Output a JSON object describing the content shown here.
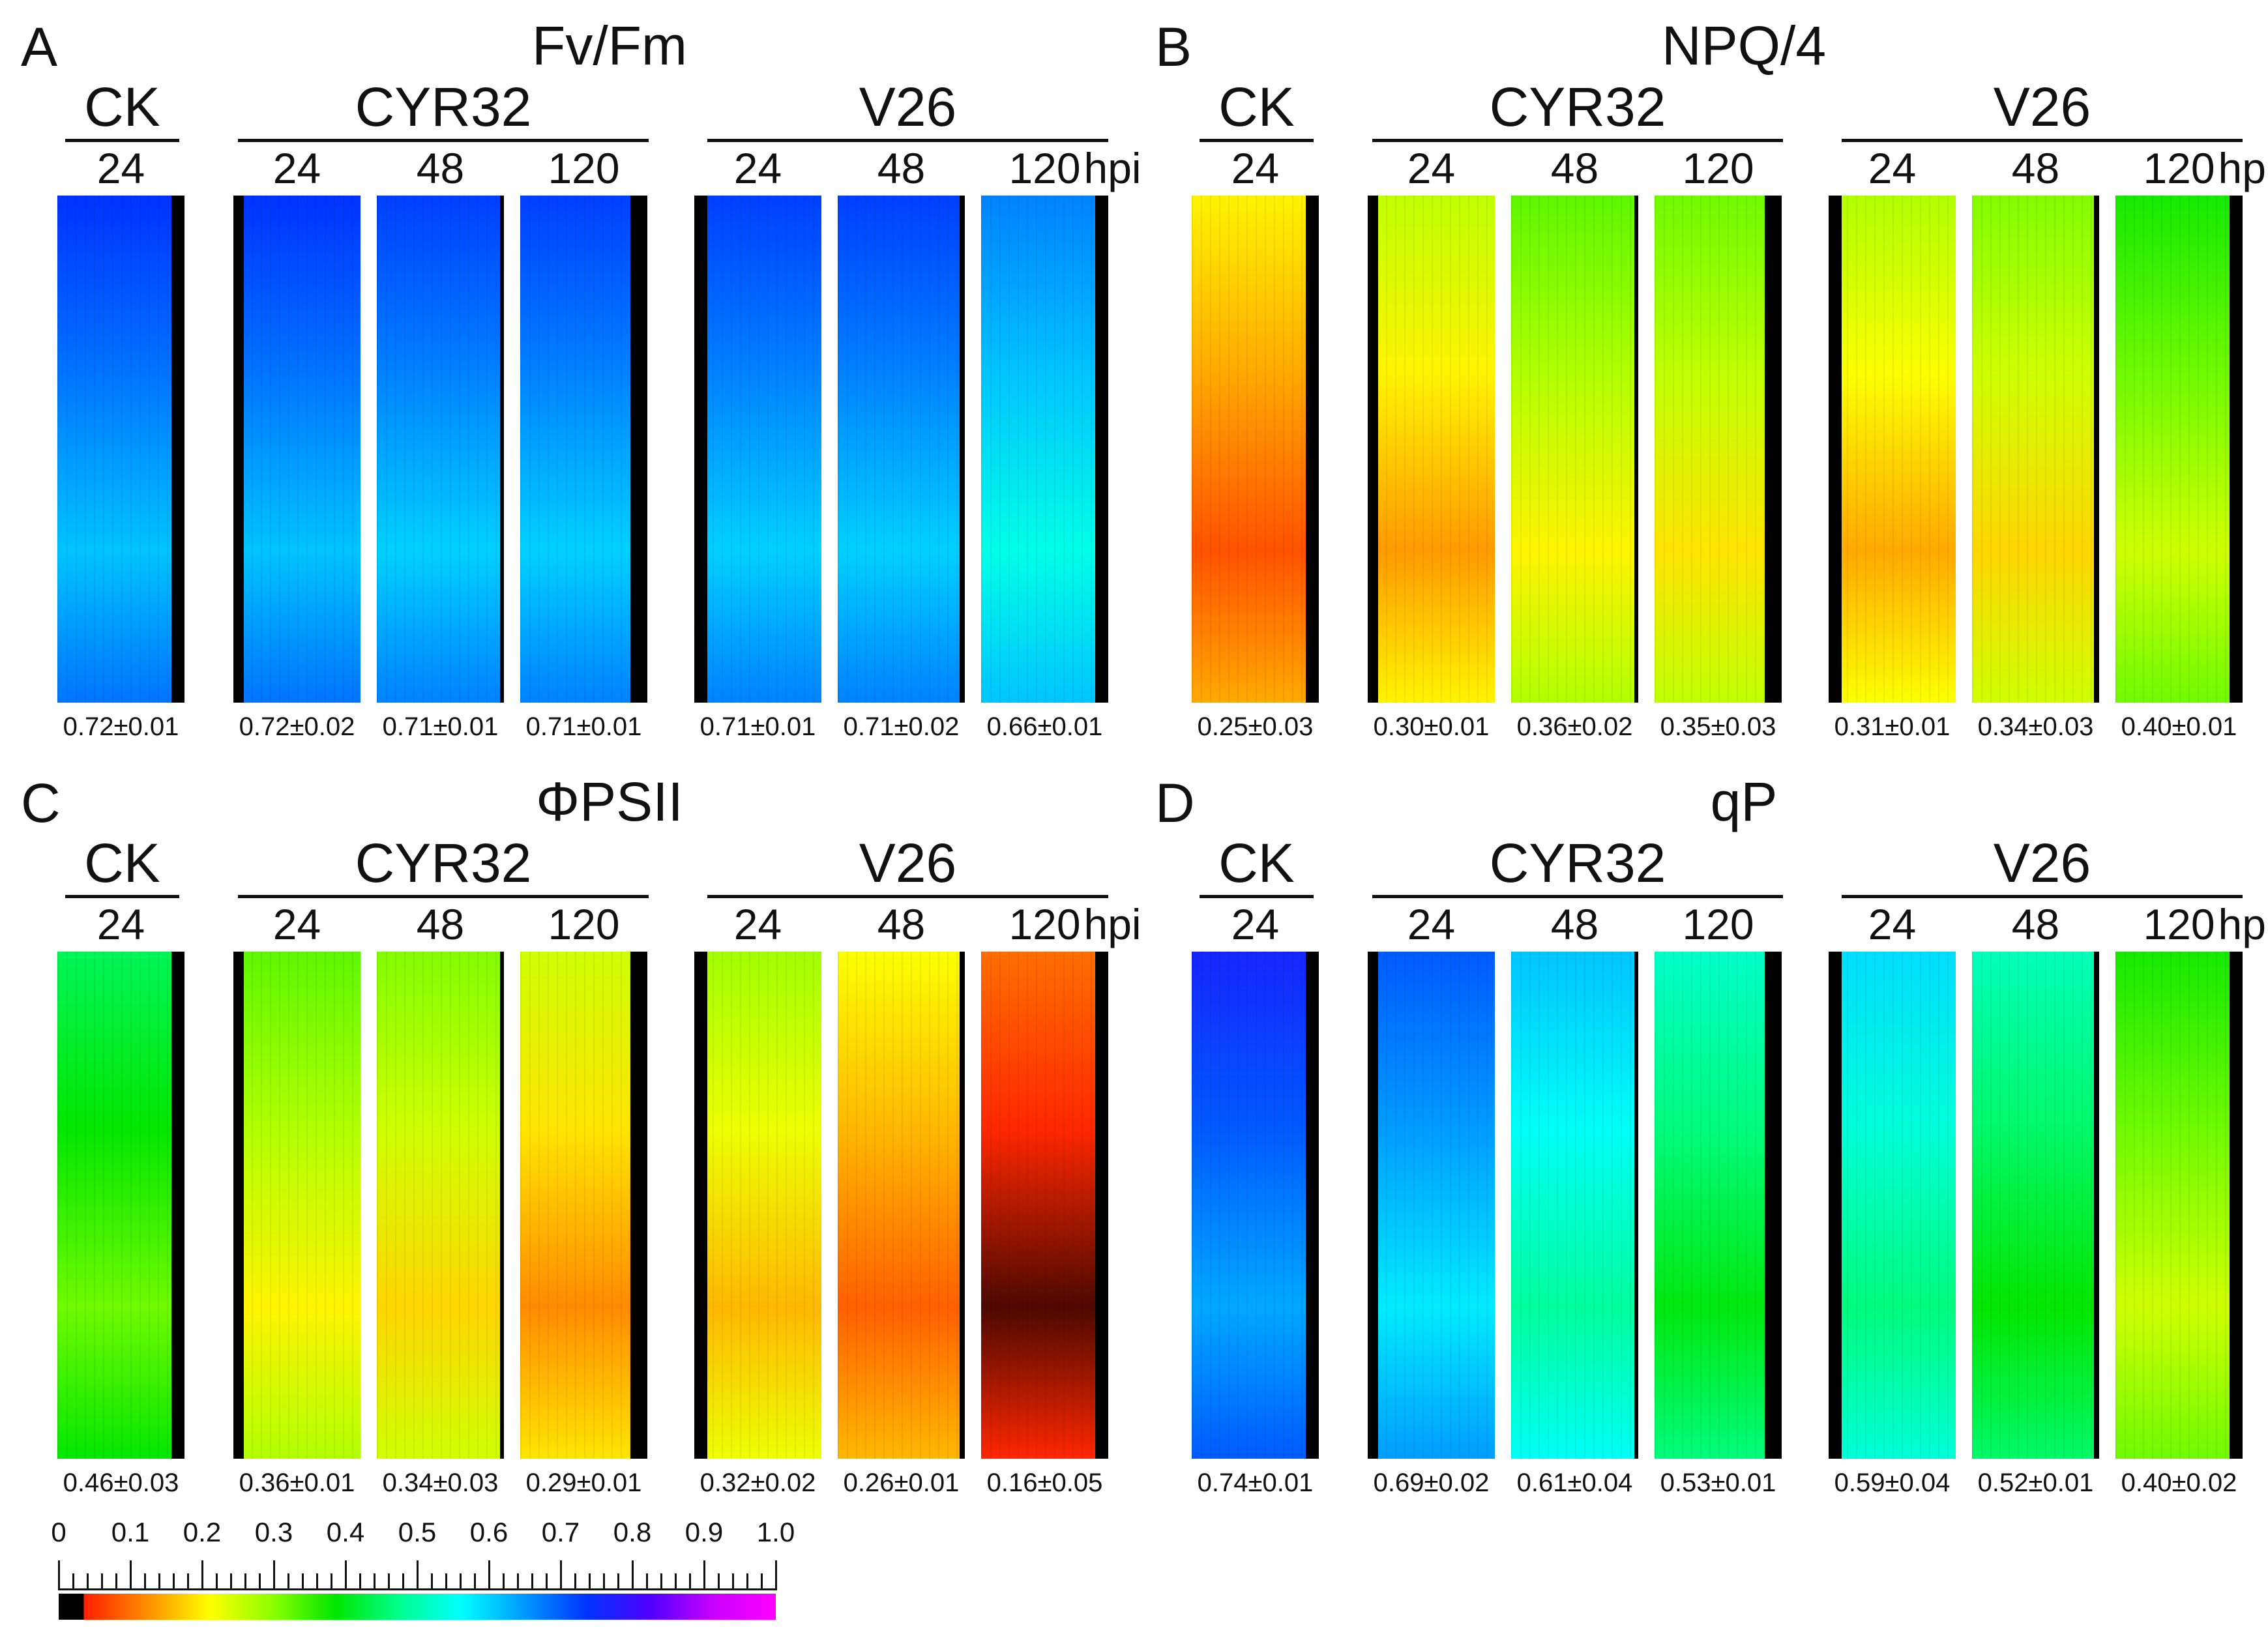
{
  "colors": {
    "scale_stops": [
      "#000000",
      "#000000",
      "#ff1e00",
      "#ff8c00",
      "#ffff00",
      "#8cff00",
      "#00e600",
      "#00ff8c",
      "#00ffff",
      "#0099ff",
      "#0033ff",
      "#5000ff",
      "#c800ff",
      "#ff00ff"
    ]
  },
  "panels": [
    {
      "letter": "A",
      "title": "Fv/Fm",
      "groups": [
        {
          "name": "CK",
          "times": [
            "24"
          ]
        },
        {
          "name": "CYR32",
          "times": [
            "24",
            "48",
            "120"
          ]
        },
        {
          "name": "V26",
          "times": [
            "24",
            "48",
            "120"
          ]
        }
      ],
      "hpi_label": "hpi",
      "leaves": [
        {
          "value": "0.72±0.01",
          "level": 0.72
        },
        {
          "value": "0.72±0.02",
          "level": 0.72
        },
        {
          "value": "0.71±0.01",
          "level": 0.71
        },
        {
          "value": "0.71±0.01",
          "level": 0.71
        },
        {
          "value": "0.71±0.01",
          "level": 0.71
        },
        {
          "value": "0.71±0.02",
          "level": 0.71
        },
        {
          "value": "0.66±0.01",
          "level": 0.66
        }
      ]
    },
    {
      "letter": "B",
      "title": "NPQ/4",
      "groups": [
        {
          "name": "CK",
          "times": [
            "24"
          ]
        },
        {
          "name": "CYR32",
          "times": [
            "24",
            "48",
            "120"
          ]
        },
        {
          "name": "V26",
          "times": [
            "24",
            "48",
            "120"
          ]
        }
      ],
      "hpi_label": "hpi",
      "leaves": [
        {
          "value": "0.25±0.03",
          "level": 0.25
        },
        {
          "value": "0.30±0.01",
          "level": 0.3
        },
        {
          "value": "0.36±0.02",
          "level": 0.36
        },
        {
          "value": "0.35±0.03",
          "level": 0.35
        },
        {
          "value": "0.31±0.01",
          "level": 0.31
        },
        {
          "value": "0.34±0.03",
          "level": 0.34
        },
        {
          "value": "0.40±0.01",
          "level": 0.4
        }
      ]
    },
    {
      "letter": "C",
      "title": "ΦPSII",
      "groups": [
        {
          "name": "CK",
          "times": [
            "24"
          ]
        },
        {
          "name": "CYR32",
          "times": [
            "24",
            "48",
            "120"
          ]
        },
        {
          "name": "V26",
          "times": [
            "24",
            "48",
            "120"
          ]
        }
      ],
      "hpi_label": "hpi",
      "leaves": [
        {
          "value": "0.46±0.03",
          "level": 0.46
        },
        {
          "value": "0.36±0.01",
          "level": 0.36
        },
        {
          "value": "0.34±0.03",
          "level": 0.34
        },
        {
          "value": "0.29±0.01",
          "level": 0.29
        },
        {
          "value": "0.32±0.02",
          "level": 0.32
        },
        {
          "value": "0.26±0.01",
          "level": 0.26
        },
        {
          "value": "0.16±0.05",
          "level": 0.16
        }
      ]
    },
    {
      "letter": "D",
      "title": "qP",
      "groups": [
        {
          "name": "CK",
          "times": [
            "24"
          ]
        },
        {
          "name": "CYR32",
          "times": [
            "24",
            "48",
            "120"
          ]
        },
        {
          "name": "V26",
          "times": [
            "24",
            "48",
            "120"
          ]
        }
      ],
      "hpi_label": "hpi",
      "leaves": [
        {
          "value": "0.74±0.01",
          "level": 0.74
        },
        {
          "value": "0.69±0.02",
          "level": 0.69
        },
        {
          "value": "0.61±0.04",
          "level": 0.61
        },
        {
          "value": "0.53±0.01",
          "level": 0.53
        },
        {
          "value": "0.59±0.04",
          "level": 0.59
        },
        {
          "value": "0.52±0.01",
          "level": 0.52
        },
        {
          "value": "0.40±0.02",
          "level": 0.4
        }
      ]
    }
  ],
  "color_scale": {
    "labels": [
      "0",
      "0.1",
      "0.2",
      "0.3",
      "0.4",
      "0.5",
      "0.6",
      "0.7",
      "0.8",
      "0.9",
      "1.0"
    ]
  }
}
